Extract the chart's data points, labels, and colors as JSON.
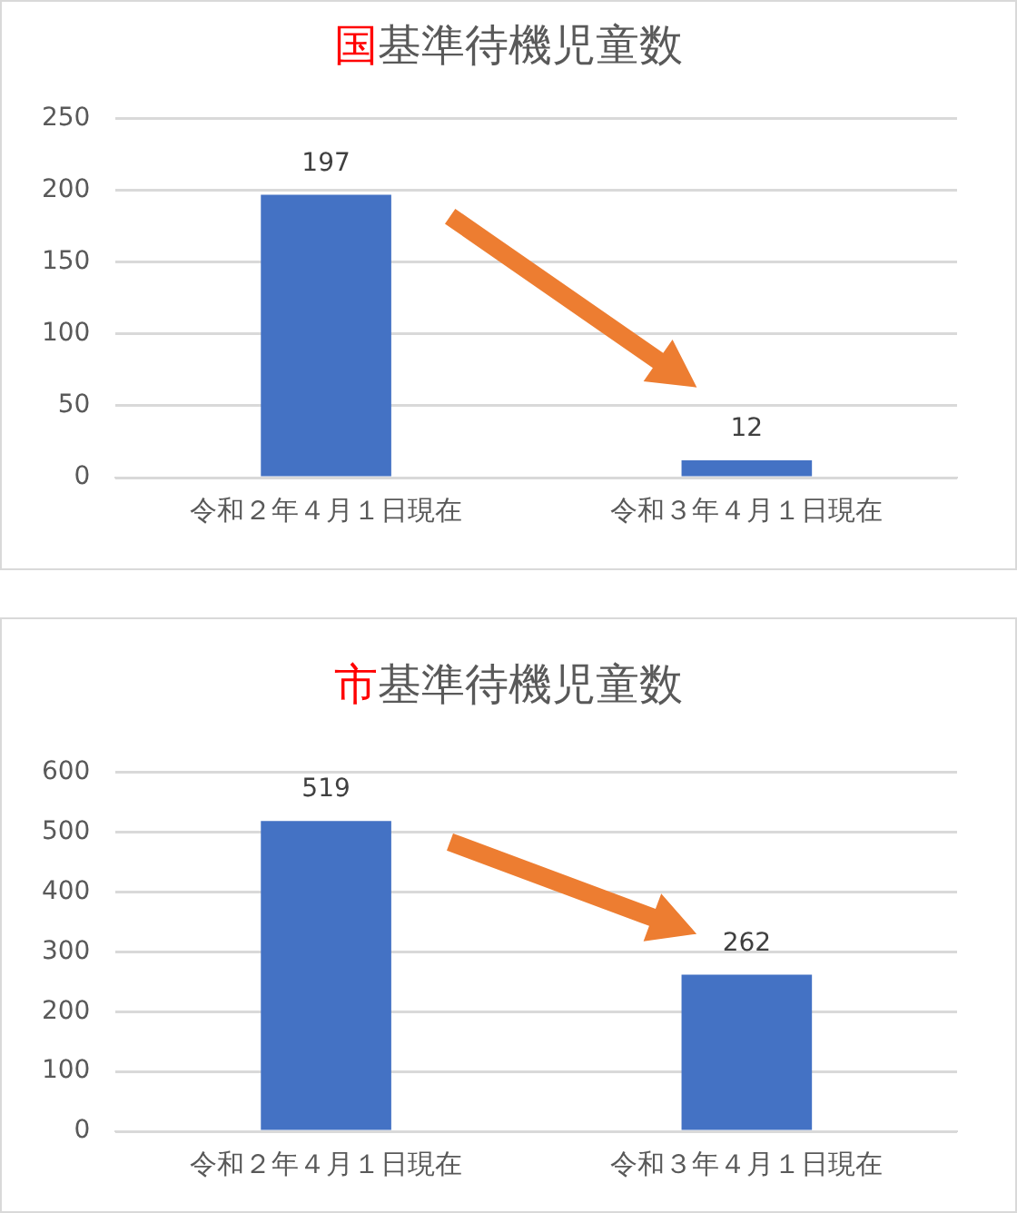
{
  "chart_data": [
    {
      "type": "bar",
      "title": "国基準待機児童数",
      "categories": [
        "令和２年４月１日現在",
        "令和３年４月１日現在"
      ],
      "values": [
        197,
        12
      ],
      "color": "#4472c4",
      "ylim": [
        0,
        250
      ],
      "yticks": [
        0,
        50,
        100,
        150,
        200,
        250
      ],
      "grid": "y",
      "data_labels": true
    },
    {
      "type": "bar",
      "title": "市基準待機児童数",
      "categories": [
        "令和２年４月１日現在",
        "令和３年４月１日現在"
      ],
      "values": [
        519,
        262
      ],
      "color": "#4472c4",
      "ylim": [
        0,
        600
      ],
      "yticks": [
        0,
        100,
        200,
        300,
        400,
        500,
        600
      ],
      "grid": "y",
      "data_labels": true
    }
  ]
}
